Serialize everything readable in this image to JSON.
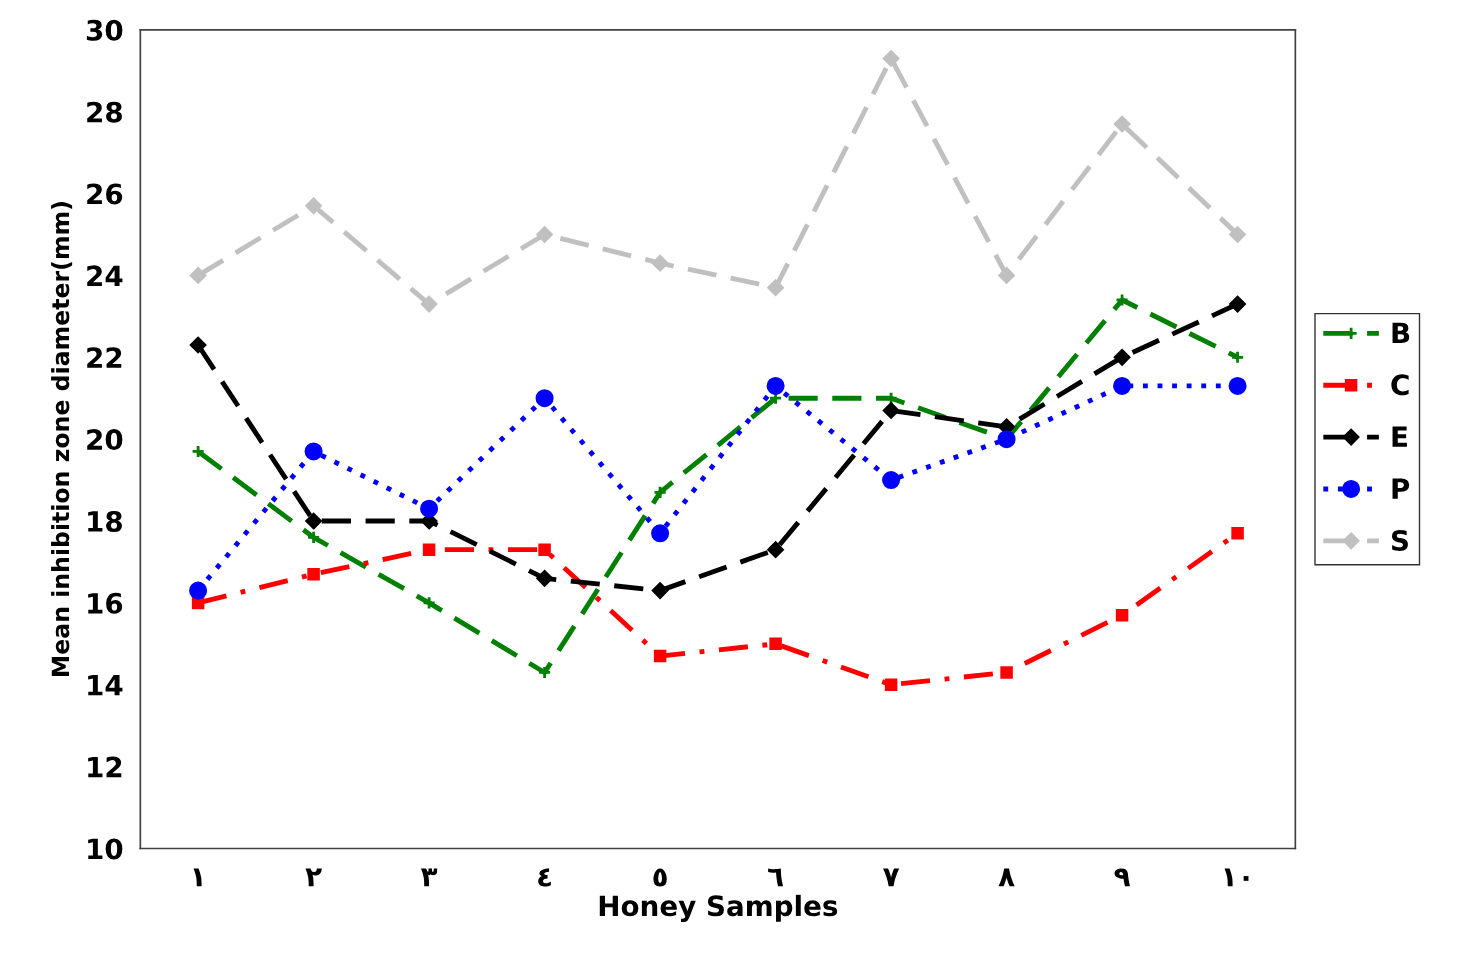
{
  "chart_data": {
    "type": "line",
    "xlabel": "Honey Samples",
    "ylabel": "Mean inhibition zone diameter(mm)",
    "categories": [
      "١",
      "٢",
      "٣",
      "٤",
      "٥",
      "٦",
      "٧",
      "٨",
      "٩",
      "١٠"
    ],
    "ylim": [
      10,
      30
    ],
    "yticks": [
      10,
      12,
      14,
      16,
      18,
      20,
      22,
      24,
      26,
      28,
      30
    ],
    "grid": false,
    "legend": "right",
    "series": [
      {
        "name": "B",
        "color": "#008000",
        "marker": "cross",
        "line_style": "dashed",
        "values": [
          19.7,
          17.6,
          16.0,
          14.3,
          18.7,
          21.0,
          21.0,
          20.0,
          23.4,
          22.0
        ]
      },
      {
        "name": "C",
        "color": "#ff0000",
        "marker": "square",
        "line_style": "dashdot",
        "values": [
          16.0,
          16.7,
          17.3,
          17.3,
          14.7,
          15.0,
          14.0,
          14.3,
          15.7,
          17.7
        ]
      },
      {
        "name": "E",
        "color": "#000000",
        "marker": "diamond",
        "line_style": "dashed",
        "values": [
          22.3,
          18.0,
          18.0,
          16.6,
          16.3,
          17.3,
          20.7,
          20.3,
          22.0,
          23.3
        ]
      },
      {
        "name": "P",
        "color": "#0000ff",
        "marker": "circle",
        "line_style": "dotted",
        "values": [
          16.3,
          19.7,
          18.3,
          21.0,
          17.7,
          21.3,
          19.0,
          20.0,
          21.3,
          21.3
        ]
      },
      {
        "name": "S",
        "color": "#c0c0c0",
        "marker": "diamond",
        "line_style": "dashed",
        "values": [
          24.0,
          25.7,
          23.3,
          25.0,
          24.3,
          23.7,
          29.3,
          24.0,
          27.7,
          25.0
        ]
      }
    ]
  }
}
